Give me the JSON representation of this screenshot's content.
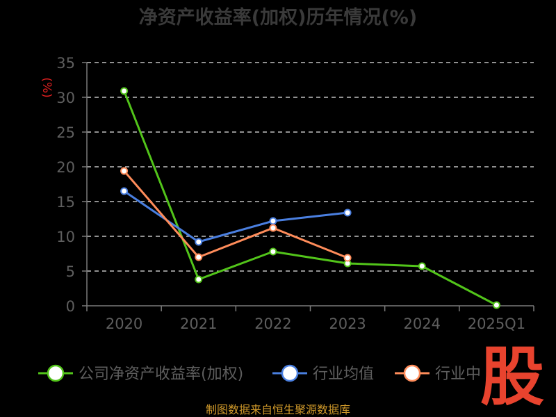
{
  "chart_data": {
    "type": "line",
    "title": "净资产收益率(加权)历年情况(%)",
    "ylabel": "(%)",
    "categories": [
      "2020",
      "2021",
      "2022",
      "2023",
      "2024",
      "2025Q1"
    ],
    "ylim": [
      0,
      35
    ],
    "yticks": [
      0,
      5,
      10,
      15,
      20,
      25,
      30,
      35
    ],
    "grid": true,
    "legend_position": "bottom",
    "series": [
      {
        "name": "公司净资产收益率(加权)",
        "color": "#52c41a",
        "values": [
          30.9,
          3.8,
          7.8,
          6.1,
          5.7,
          0.1
        ]
      },
      {
        "name": "行业均值",
        "color": "#4a7fe0",
        "values": [
          16.5,
          9.2,
          12.2,
          13.4,
          null,
          null
        ]
      },
      {
        "name": "行业中",
        "color": "#ff8c5a",
        "values": [
          19.4,
          7.0,
          11.2,
          6.9,
          null,
          null
        ]
      }
    ]
  },
  "source": "制图数据来自恒生聚源数据库",
  "logo": {
    "text": "股",
    "color": "#e8432e"
  }
}
